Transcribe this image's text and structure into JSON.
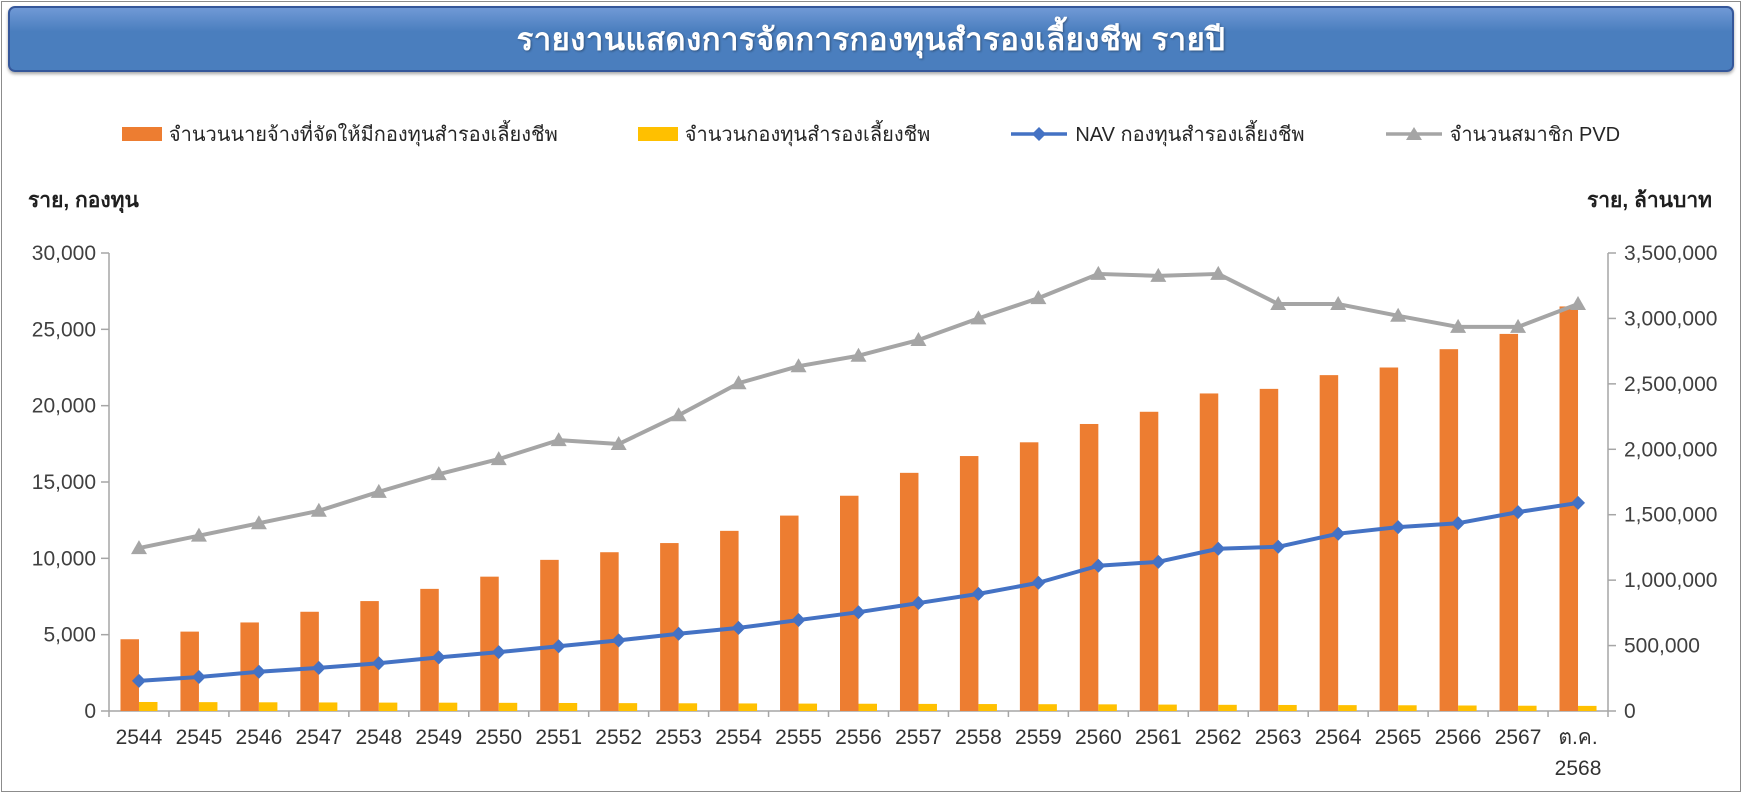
{
  "title": "รายงานแสดงการจัดการกองทุนสำรองเลี้ยงชีพ รายปี",
  "colors": {
    "banner_fill": "#4A7EBE",
    "banner_fill_light": "#7099D6",
    "banner_border": "#35579A",
    "axis_line": "#A6A6A6",
    "tick_text": "#404040",
    "category_text": "#333333"
  },
  "chart_data": {
    "type": "combo-bar-line",
    "legend_position": "top",
    "grid": false,
    "categories": [
      "2544",
      "2545",
      "2546",
      "2547",
      "2548",
      "2549",
      "2550",
      "2551",
      "2552",
      "2553",
      "2554",
      "2555",
      "2556",
      "2557",
      "2558",
      "2559",
      "2560",
      "2561",
      "2562",
      "2563",
      "2564",
      "2565",
      "2566",
      "2567",
      "ต.ค. 2568"
    ],
    "series": [
      {
        "name": "จำนวนนายจ้างที่จัดให้มีกองทุนสำรองเลี้ยงชีพ",
        "type": "bar",
        "axis": "left",
        "color": "#ED7D31",
        "values": [
          4700,
          5200,
          5800,
          6500,
          7200,
          8000,
          8800,
          9900,
          10400,
          11000,
          11800,
          12800,
          14100,
          15600,
          16700,
          17600,
          18800,
          19600,
          20800,
          21100,
          22000,
          22500,
          23700,
          24700,
          26500
        ]
      },
      {
        "name": "จำนวนกองทุนสำรองเลี้ยงชีพ",
        "type": "bar",
        "axis": "left",
        "color": "#FFC000",
        "values": [
          590,
          580,
          570,
          560,
          550,
          545,
          535,
          525,
          515,
          505,
          495,
          485,
          475,
          465,
          455,
          445,
          435,
          420,
          405,
          395,
          385,
          375,
          360,
          345,
          335
        ]
      },
      {
        "name": "NAV กองทุนสำรองเลี้ยงชีพ",
        "type": "line",
        "marker": "diamond",
        "axis": "right",
        "color": "#4472C4",
        "values": [
          230000,
          260000,
          300000,
          330000,
          365000,
          410000,
          450000,
          495000,
          540000,
          590000,
          635000,
          695000,
          755000,
          825000,
          895000,
          980000,
          1110000,
          1140000,
          1240000,
          1255000,
          1355000,
          1405000,
          1435000,
          1520000,
          1590000
        ]
      },
      {
        "name": "จำนวนสมาชิก PVD",
        "type": "line",
        "marker": "triangle",
        "axis": "right",
        "color": "#A5A5A5",
        "values": [
          1245000,
          1340000,
          1435000,
          1530000,
          1675000,
          1810000,
          1925000,
          2070000,
          2040000,
          2260000,
          2505000,
          2635000,
          2715000,
          2835000,
          3000000,
          3155000,
          3340000,
          3325000,
          3340000,
          3110000,
          3110000,
          3020000,
          2935000,
          2935000,
          3110000
        ]
      }
    ],
    "left_axis": {
      "title": "ราย, กองทุน",
      "min": 0,
      "max": 30000,
      "step": 5000,
      "tick_labels": [
        "0",
        "5,000",
        "10,000",
        "15,000",
        "20,000",
        "25,000",
        "30,000"
      ]
    },
    "right_axis": {
      "title": "ราย, ล้านบาท",
      "min": 0,
      "max": 3500000,
      "step": 500000,
      "tick_labels": [
        "0",
        "500,000",
        "1,000,000",
        "1,500,000",
        "2,000,000",
        "2,500,000",
        "3,000,000",
        "3,500,000"
      ]
    }
  }
}
